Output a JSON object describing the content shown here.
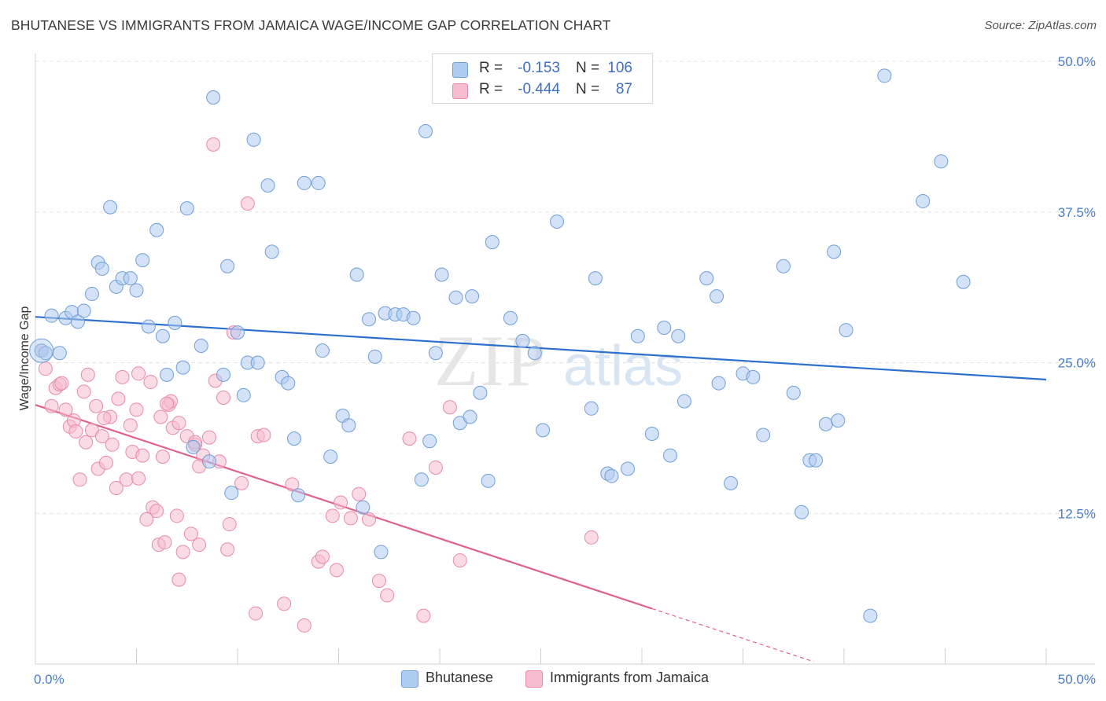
{
  "header": {
    "title": "BHUTANESE VS IMMIGRANTS FROM JAMAICA WAGE/INCOME GAP CORRELATION CHART",
    "source": "Source: ZipAtlas.com"
  },
  "watermark": {
    "part1": "ZIP",
    "part2": "atlas"
  },
  "legend": {
    "rows": [
      {
        "r_label": "R =",
        "r_value": "-0.153",
        "n_label": "N =",
        "n_value": "106"
      },
      {
        "r_label": "R =",
        "r_value": "-0.444",
        "n_label": "N =",
        "n_value": "87"
      }
    ]
  },
  "bottom_legend": {
    "items": [
      "Bhutanese",
      "Immigrants from Jamaica"
    ]
  },
  "colors": {
    "blue_fill": "#aecbf0",
    "blue_stroke": "#6f9fd8",
    "blue_line": "#2d6fcc",
    "pink_fill": "#f6bcd0",
    "pink_stroke": "#e88aac",
    "pink_line": "#e0608e",
    "tick_text": "#4a7cc7",
    "grid": "#e4e4e4"
  },
  "chart_data": {
    "type": "scatter",
    "title": "BHUTANESE VS IMMIGRANTS FROM JAMAICA WAGE/INCOME GAP CORRELATION CHART",
    "xlabel": "",
    "ylabel": "Wage/Income Gap",
    "xlim": [
      0,
      50
    ],
    "ylim": [
      0,
      50
    ],
    "x_tick_labels": [
      "0.0%",
      "50.0%"
    ],
    "y_tick_values": [
      12.5,
      25.0,
      37.5,
      50.0
    ],
    "y_tick_labels": [
      "12.5%",
      "25.0%",
      "37.5%",
      "50.0%"
    ],
    "grid": true,
    "legend_position": "top-center",
    "series": [
      {
        "name": "Bhutanese",
        "r": -0.153,
        "n": 106,
        "trend": {
          "x": [
            0,
            50
          ],
          "y": [
            28.8,
            23.6
          ]
        },
        "points": [
          [
            0.3,
            26.0
          ],
          [
            0.5,
            25.8
          ],
          [
            0.8,
            28.9
          ],
          [
            1.2,
            25.8
          ],
          [
            1.5,
            28.7
          ],
          [
            1.8,
            29.2
          ],
          [
            2.1,
            28.4
          ],
          [
            2.4,
            29.3
          ],
          [
            2.8,
            30.7
          ],
          [
            3.1,
            33.3
          ],
          [
            3.3,
            32.8
          ],
          [
            3.7,
            37.9
          ],
          [
            4.0,
            31.3
          ],
          [
            4.3,
            32.0
          ],
          [
            4.7,
            32.0
          ],
          [
            5.0,
            31.0
          ],
          [
            5.3,
            33.5
          ],
          [
            5.6,
            28.0
          ],
          [
            6.0,
            36.0
          ],
          [
            6.3,
            27.2
          ],
          [
            6.5,
            24.0
          ],
          [
            6.9,
            28.3
          ],
          [
            7.3,
            24.6
          ],
          [
            7.5,
            37.8
          ],
          [
            7.8,
            18.0
          ],
          [
            8.2,
            26.4
          ],
          [
            8.6,
            16.8
          ],
          [
            8.8,
            47.0
          ],
          [
            9.3,
            24.0
          ],
          [
            9.5,
            33.0
          ],
          [
            9.7,
            14.2
          ],
          [
            10.3,
            22.3
          ],
          [
            10.5,
            25.0
          ],
          [
            10.8,
            43.5
          ],
          [
            11.0,
            25.0
          ],
          [
            11.5,
            39.7
          ],
          [
            11.7,
            34.2
          ],
          [
            12.2,
            23.8
          ],
          [
            12.5,
            23.3
          ],
          [
            12.8,
            18.7
          ],
          [
            13.0,
            14.0
          ],
          [
            13.3,
            39.9
          ],
          [
            14.0,
            39.9
          ],
          [
            14.2,
            26.0
          ],
          [
            14.6,
            17.2
          ],
          [
            15.2,
            20.6
          ],
          [
            15.5,
            19.8
          ],
          [
            15.9,
            32.3
          ],
          [
            16.2,
            13.0
          ],
          [
            16.5,
            28.6
          ],
          [
            16.8,
            25.5
          ],
          [
            17.1,
            9.3
          ],
          [
            17.3,
            29.1
          ],
          [
            17.8,
            29.0
          ],
          [
            18.2,
            29.0
          ],
          [
            18.7,
            28.7
          ],
          [
            19.1,
            15.3
          ],
          [
            19.3,
            44.2
          ],
          [
            19.5,
            18.5
          ],
          [
            19.8,
            25.8
          ],
          [
            20.1,
            32.3
          ],
          [
            20.8,
            30.4
          ],
          [
            21.0,
            20.0
          ],
          [
            21.6,
            30.5
          ],
          [
            22.0,
            22.5
          ],
          [
            22.4,
            15.2
          ],
          [
            22.6,
            35.0
          ],
          [
            23.5,
            28.7
          ],
          [
            24.1,
            26.8
          ],
          [
            24.7,
            25.8
          ],
          [
            25.1,
            19.4
          ],
          [
            25.8,
            36.7
          ],
          [
            27.5,
            21.2
          ],
          [
            27.7,
            32.0
          ],
          [
            28.3,
            15.8
          ],
          [
            28.5,
            15.6
          ],
          [
            29.3,
            16.2
          ],
          [
            29.8,
            27.2
          ],
          [
            30.5,
            19.1
          ],
          [
            31.1,
            27.9
          ],
          [
            31.4,
            17.3
          ],
          [
            31.8,
            27.2
          ],
          [
            32.1,
            21.8
          ],
          [
            33.2,
            32.0
          ],
          [
            33.7,
            30.5
          ],
          [
            33.8,
            23.3
          ],
          [
            34.4,
            15.0
          ],
          [
            35.0,
            24.1
          ],
          [
            35.5,
            23.8
          ],
          [
            36.0,
            19.0
          ],
          [
            37.0,
            33.0
          ],
          [
            37.5,
            22.5
          ],
          [
            37.9,
            12.6
          ],
          [
            38.3,
            16.9
          ],
          [
            38.6,
            16.9
          ],
          [
            39.1,
            19.9
          ],
          [
            39.5,
            34.2
          ],
          [
            39.7,
            20.2
          ],
          [
            40.1,
            27.7
          ],
          [
            41.3,
            4.0
          ],
          [
            42.0,
            48.8
          ],
          [
            43.9,
            38.4
          ],
          [
            44.8,
            41.7
          ],
          [
            45.9,
            31.7
          ],
          [
            21.5,
            20.5
          ],
          [
            10.0,
            27.5
          ]
        ]
      },
      {
        "name": "Immigrants from Jamaica",
        "r": -0.444,
        "n": 87,
        "trend": {
          "x": [
            0,
            30.5
          ],
          "y": [
            21.5,
            4.6
          ]
        },
        "trend_dashed": {
          "x": [
            30.5,
            38.5
          ],
          "y": [
            4.6,
            0.2
          ]
        },
        "points": [
          [
            0.3,
            26.0
          ],
          [
            0.5,
            24.5
          ],
          [
            0.8,
            21.4
          ],
          [
            1.0,
            22.9
          ],
          [
            1.2,
            23.2
          ],
          [
            1.3,
            23.3
          ],
          [
            1.5,
            21.1
          ],
          [
            1.7,
            19.7
          ],
          [
            1.9,
            20.2
          ],
          [
            2.0,
            19.3
          ],
          [
            2.2,
            15.3
          ],
          [
            2.4,
            22.6
          ],
          [
            2.5,
            18.4
          ],
          [
            2.8,
            19.4
          ],
          [
            3.0,
            21.4
          ],
          [
            3.1,
            16.2
          ],
          [
            3.3,
            18.9
          ],
          [
            3.5,
            16.7
          ],
          [
            3.7,
            20.5
          ],
          [
            3.8,
            18.2
          ],
          [
            4.0,
            14.6
          ],
          [
            4.1,
            22.0
          ],
          [
            4.3,
            23.8
          ],
          [
            4.5,
            15.3
          ],
          [
            4.7,
            19.8
          ],
          [
            4.8,
            17.6
          ],
          [
            5.0,
            21.1
          ],
          [
            5.1,
            15.4
          ],
          [
            5.3,
            17.3
          ],
          [
            5.5,
            12.0
          ],
          [
            5.7,
            23.4
          ],
          [
            5.8,
            13.0
          ],
          [
            6.0,
            12.7
          ],
          [
            6.1,
            9.9
          ],
          [
            6.3,
            17.2
          ],
          [
            6.4,
            10.1
          ],
          [
            6.6,
            21.5
          ],
          [
            6.8,
            19.6
          ],
          [
            7.0,
            12.3
          ],
          [
            7.1,
            7.0
          ],
          [
            7.3,
            9.3
          ],
          [
            7.5,
            18.9
          ],
          [
            7.7,
            10.8
          ],
          [
            7.9,
            18.2
          ],
          [
            8.1,
            9.9
          ],
          [
            8.3,
            17.3
          ],
          [
            8.6,
            18.8
          ],
          [
            8.8,
            43.1
          ],
          [
            8.9,
            23.5
          ],
          [
            9.1,
            16.8
          ],
          [
            9.3,
            22.1
          ],
          [
            9.5,
            9.5
          ],
          [
            9.6,
            11.6
          ],
          [
            9.8,
            27.5
          ],
          [
            10.2,
            15.0
          ],
          [
            10.5,
            38.2
          ],
          [
            10.9,
            4.2
          ],
          [
            11.0,
            18.9
          ],
          [
            11.3,
            19.0
          ],
          [
            12.3,
            5.0
          ],
          [
            12.7,
            14.9
          ],
          [
            13.3,
            3.2
          ],
          [
            14.0,
            8.5
          ],
          [
            14.2,
            8.9
          ],
          [
            14.7,
            12.3
          ],
          [
            14.9,
            7.8
          ],
          [
            15.1,
            13.4
          ],
          [
            15.6,
            12.1
          ],
          [
            16.0,
            14.1
          ],
          [
            16.5,
            12.0
          ],
          [
            17.0,
            6.9
          ],
          [
            17.4,
            5.7
          ],
          [
            18.5,
            18.7
          ],
          [
            19.2,
            4.0
          ],
          [
            19.8,
            16.3
          ],
          [
            20.5,
            21.3
          ],
          [
            21.0,
            8.6
          ],
          [
            27.5,
            10.5
          ],
          [
            7.9,
            18.4
          ],
          [
            6.2,
            20.5
          ],
          [
            8.1,
            16.4
          ],
          [
            6.7,
            21.8
          ],
          [
            3.4,
            20.4
          ],
          [
            2.6,
            24.0
          ],
          [
            5.1,
            24.1
          ],
          [
            6.5,
            21.6
          ],
          [
            7.1,
            20.0
          ]
        ]
      }
    ]
  }
}
